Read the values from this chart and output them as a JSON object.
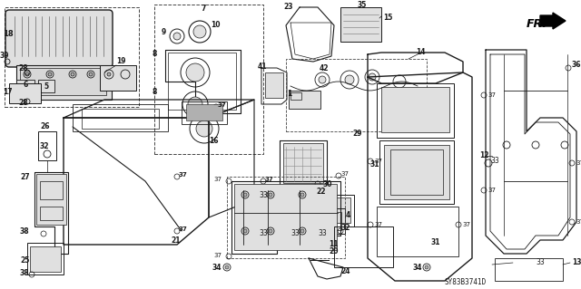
{
  "background_color": "#ffffff",
  "diagram_code": "SY83B3741D",
  "fr_label": "FR.",
  "fig_width": 6.4,
  "fig_height": 3.19,
  "dpi": 100,
  "line_color": "#1a1a1a",
  "text_color": "#1a1a1a",
  "gray_fill": "#c8c8c8",
  "light_gray": "#e0e0e0",
  "mid_gray": "#b0b0b0"
}
